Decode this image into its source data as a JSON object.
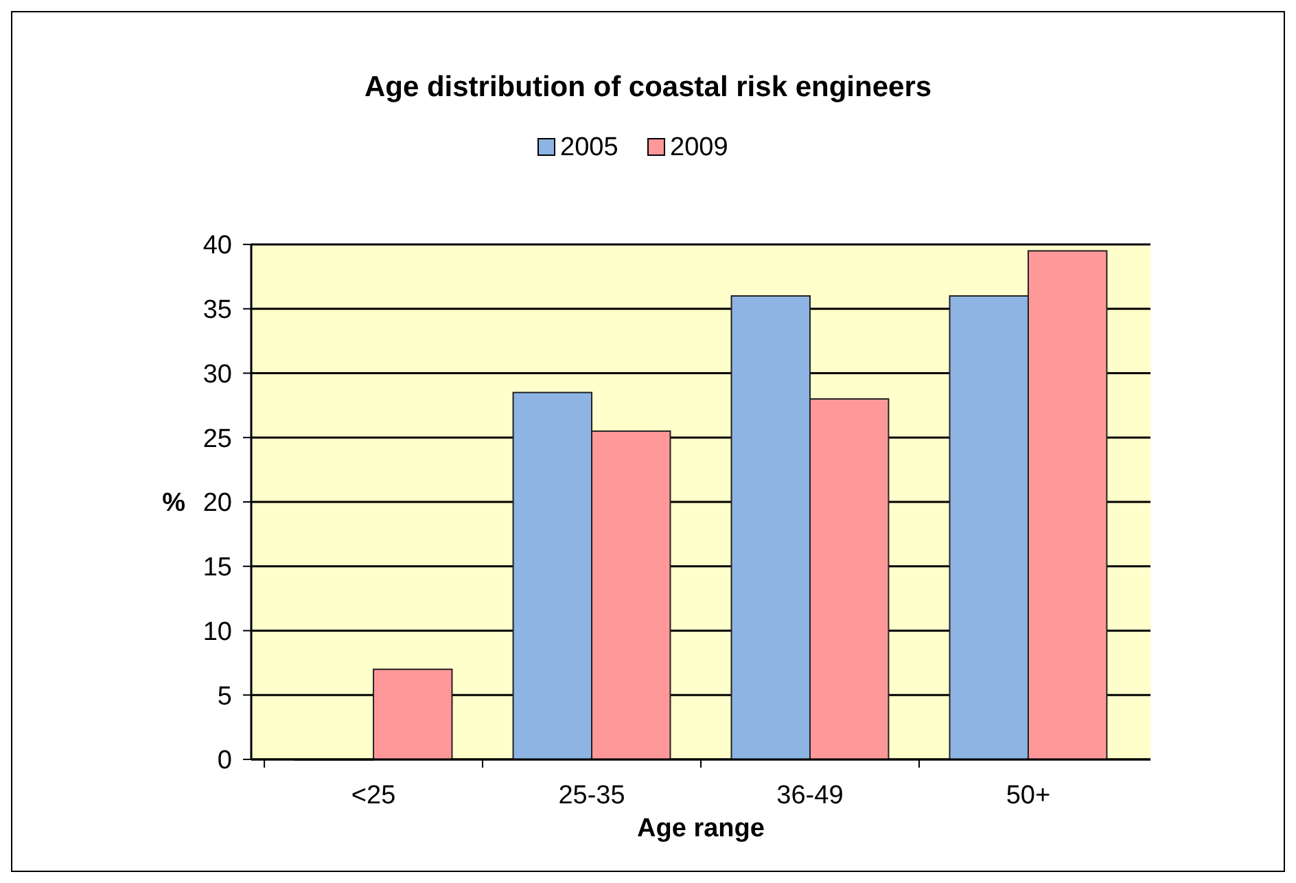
{
  "chart_data": {
    "type": "bar",
    "title": "Age distribution of coastal risk engineers",
    "xlabel": "Age range",
    "ylabel": "%",
    "categories": [
      "<25",
      "25-35",
      "36-49",
      "50+"
    ],
    "series": [
      {
        "name": "2005",
        "color": "#8eb4e3",
        "values": [
          0,
          28.5,
          36,
          36
        ]
      },
      {
        "name": "2009",
        "color": "#ff9999",
        "values": [
          7,
          25.5,
          28,
          39.5
        ]
      }
    ],
    "ylim": [
      0,
      40
    ],
    "yticks": [
      0,
      5,
      10,
      15,
      20,
      25,
      30,
      35,
      40
    ],
    "grid": "y",
    "legend": "top"
  }
}
